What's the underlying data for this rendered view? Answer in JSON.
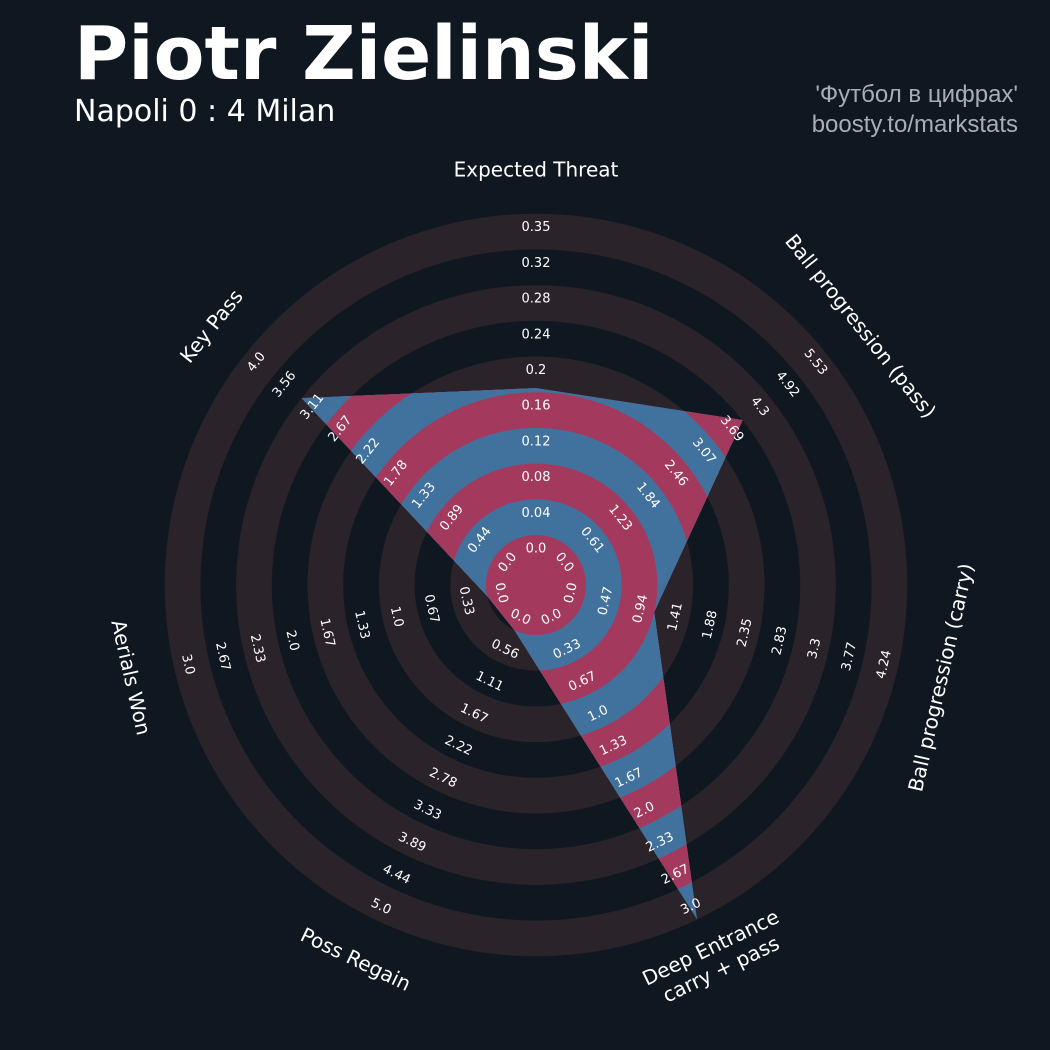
{
  "header": {
    "title": "Piotr Zielinski",
    "subtitle": "Napoli 0 : 4 Milan",
    "credit_line1": "'Футбол в цифрах'",
    "credit_line2": "boosty.to/markstats"
  },
  "colors": {
    "background": "#0f1820",
    "ring_dark": "#2a2329",
    "ring_dark_alt": "#0f1820",
    "fill_blue": "#41729e",
    "fill_red": "#a33a5e",
    "text": "#ffffff"
  },
  "chart_data": {
    "type": "radar",
    "title": "Piotr Zielinski",
    "subtitle": "Napoli 0 : 4 Milan",
    "axes": [
      {
        "label": "Expected Threat",
        "min": 0.0,
        "max": 0.35,
        "value": 0.16,
        "ticks": [
          "0.0",
          "0.04",
          "0.08",
          "0.12",
          "0.16",
          "0.2",
          "0.24",
          "0.28",
          "0.32",
          "0.35"
        ]
      },
      {
        "label": "Ball progression (pass)",
        "min": 0.0,
        "max": 5.53,
        "value": 3.69,
        "ticks": [
          "0.0",
          "0.61",
          "1.23",
          "1.84",
          "2.46",
          "3.07",
          "3.69",
          "4.3",
          "4.92",
          "5.53"
        ]
      },
      {
        "label": "Ball progression (carry)",
        "min": 0.0,
        "max": 4.24,
        "value": 0.94,
        "ticks": [
          "0.0",
          "0.47",
          "0.94",
          "1.41",
          "1.88",
          "2.35",
          "2.83",
          "3.3",
          "3.77",
          "4.24"
        ]
      },
      {
        "label": "Deep Entrance\ncarry + pass",
        "min": 0.0,
        "max": 3.0,
        "value": 3.0,
        "ticks": [
          "0.0",
          "0.33",
          "0.67",
          "1.0",
          "1.33",
          "1.67",
          "2.0",
          "2.33",
          "2.67",
          "3.0"
        ]
      },
      {
        "label": "Poss Regain",
        "min": 0.0,
        "max": 5.0,
        "value": 0.0,
        "ticks": [
          "0.0",
          "0.56",
          "1.11",
          "1.67",
          "2.22",
          "2.78",
          "3.33",
          "3.89",
          "4.44",
          "5.0"
        ]
      },
      {
        "label": "Aerials Won",
        "min": 0.0,
        "max": 3.0,
        "value": 0.0,
        "ticks": [
          "0.0",
          "0.33",
          "0.67",
          "1.0",
          "1.33",
          "1.67",
          "2.0",
          "2.33",
          "2.67",
          "3.0"
        ]
      },
      {
        "label": "Key Pass",
        "min": 0.0,
        "max": 4.0,
        "value": 3.11,
        "ticks": [
          "0.0",
          "0.44",
          "0.89",
          "1.33",
          "1.78",
          "2.22",
          "2.67",
          "3.11",
          "3.56",
          "4.0"
        ]
      }
    ]
  }
}
